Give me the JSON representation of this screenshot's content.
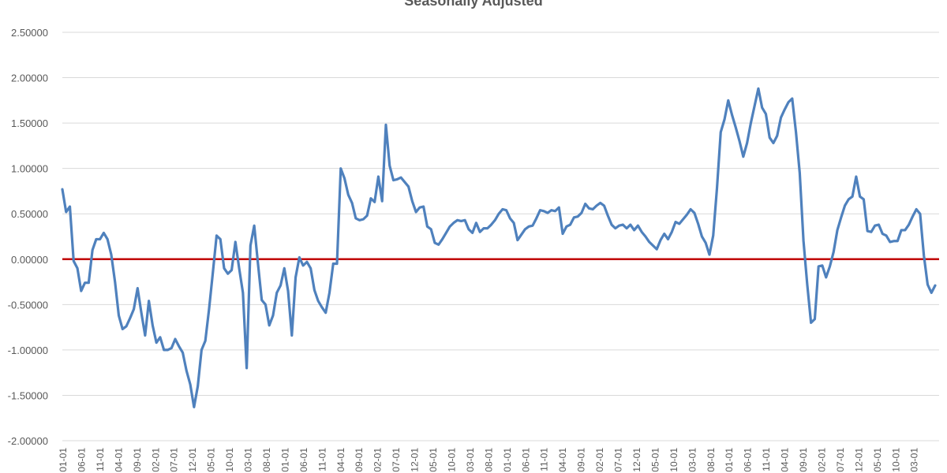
{
  "chart_data": {
    "type": "line",
    "title": "Seasonally Adjusted",
    "xlabel": "",
    "ylabel": "",
    "ylim": [
      -2.0,
      2.5
    ],
    "y_ticks": [
      "2.50000",
      "2.00000",
      "1.50000",
      "1.00000",
      "0.50000",
      "0.00000",
      "-0.50000",
      "-1.00000",
      "-1.50000",
      "-2.00000"
    ],
    "x_tick_labels": [
      "01-01",
      "06-01",
      "11-01",
      "04-01",
      "09-01",
      "02-01",
      "07-01",
      "12-01",
      "05-01",
      "10-01",
      "03-01",
      "08-01",
      "01-01",
      "06-01",
      "11-01",
      "04-01",
      "09-01",
      "02-01",
      "07-01",
      "12-01",
      "05-01",
      "10-01",
      "03-01",
      "08-01",
      "01-01",
      "06-01",
      "11-01",
      "04-01",
      "09-01",
      "02-01",
      "07-01",
      "12-01",
      "05-01",
      "10-01",
      "03-01",
      "08-01",
      "01-01",
      "06-01",
      "11-01",
      "04-01",
      "09-01",
      "02-01",
      "07-01",
      "12-01",
      "05-01",
      "10-01",
      "03-01"
    ],
    "grid": true,
    "legend": "none",
    "zero_line_color": "#C00000",
    "series_color": "#4F81BD",
    "series": [
      {
        "values": [
          0.77,
          0.52,
          0.58,
          -0.02,
          -0.1,
          -0.35,
          -0.26,
          -0.26,
          0.1,
          0.22,
          0.22,
          0.29,
          0.22,
          0.05,
          -0.25,
          -0.62,
          -0.77,
          -0.74,
          -0.65,
          -0.55,
          -0.32,
          -0.59,
          -0.84,
          -0.46,
          -0.73,
          -0.92,
          -0.86,
          -1.0,
          -1.0,
          -0.98,
          -0.88,
          -0.96,
          -1.03,
          -1.23,
          -1.38,
          -1.63,
          -1.4,
          -1.0,
          -0.9,
          -0.55,
          -0.15,
          0.26,
          0.22,
          -0.1,
          -0.16,
          -0.12,
          0.19,
          -0.1,
          -0.37,
          -1.2,
          0.15,
          0.37,
          -0.05,
          -0.45,
          -0.5,
          -0.73,
          -0.62,
          -0.37,
          -0.29,
          -0.1,
          -0.35,
          -0.84,
          -0.2,
          0.02,
          -0.07,
          -0.03,
          -0.1,
          -0.34,
          -0.46,
          -0.53,
          -0.59,
          -0.37,
          -0.05,
          -0.05,
          1.0,
          0.89,
          0.71,
          0.62,
          0.45,
          0.43,
          0.44,
          0.48,
          0.67,
          0.63,
          0.91,
          0.64,
          1.48,
          1.03,
          0.87,
          0.88,
          0.9,
          0.85,
          0.8,
          0.64,
          0.52,
          0.57,
          0.58,
          0.36,
          0.33,
          0.18,
          0.16,
          0.22,
          0.29,
          0.36,
          0.4,
          0.43,
          0.42,
          0.43,
          0.33,
          0.29,
          0.4,
          0.3,
          0.34,
          0.34,
          0.38,
          0.43,
          0.5,
          0.55,
          0.54,
          0.45,
          0.4,
          0.21,
          0.27,
          0.33,
          0.36,
          0.37,
          0.45,
          0.54,
          0.53,
          0.51,
          0.54,
          0.53,
          0.57,
          0.28,
          0.36,
          0.38,
          0.46,
          0.47,
          0.51,
          0.61,
          0.56,
          0.55,
          0.59,
          0.62,
          0.59,
          0.48,
          0.38,
          0.34,
          0.37,
          0.38,
          0.34,
          0.38,
          0.32,
          0.37,
          0.3,
          0.25,
          0.19,
          0.15,
          0.11,
          0.21,
          0.28,
          0.22,
          0.3,
          0.41,
          0.39,
          0.44,
          0.49,
          0.55,
          0.51,
          0.39,
          0.25,
          0.18,
          0.05,
          0.26,
          0.78,
          1.4,
          1.54,
          1.75,
          1.59,
          1.45,
          1.3,
          1.13,
          1.28,
          1.5,
          1.69,
          1.88,
          1.67,
          1.6,
          1.34,
          1.28,
          1.36,
          1.56,
          1.65,
          1.73,
          1.77,
          1.4,
          0.95,
          0.2,
          -0.28,
          -0.7,
          -0.66,
          -0.08,
          -0.07,
          -0.2,
          -0.08,
          0.08,
          0.32,
          0.46,
          0.59,
          0.66,
          0.69,
          0.91,
          0.69,
          0.66,
          0.31,
          0.3,
          0.37,
          0.38,
          0.28,
          0.26,
          0.19,
          0.2,
          0.2,
          0.32,
          0.32,
          0.38,
          0.47,
          0.55,
          0.5,
          0.04,
          -0.28,
          -0.37,
          -0.29
        ]
      }
    ]
  }
}
